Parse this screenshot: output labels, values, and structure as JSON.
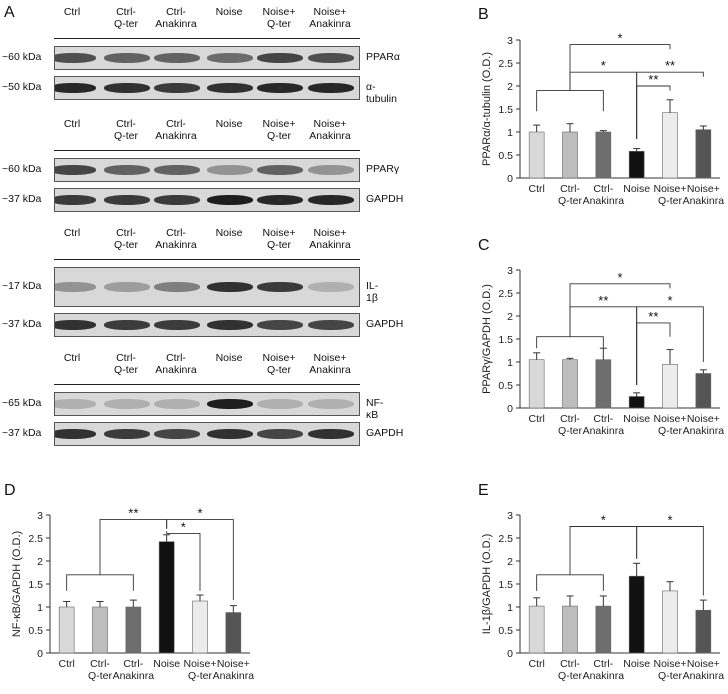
{
  "panels": {
    "A": "A",
    "B": "B",
    "C": "C",
    "D": "D",
    "E": "E"
  },
  "lanes": [
    "Ctrl",
    "Ctrl-\nQ-ter",
    "Ctrl-\nAnakinra",
    "Noise",
    "Noise+\nQ-ter",
    "Noise+\nAnakinra"
  ],
  "blots": [
    {
      "rows": [
        {
          "kda": "~60 kDa",
          "protein": "PPARα",
          "intensity": [
            0.7,
            0.6,
            0.6,
            0.55,
            0.75,
            0.7
          ]
        },
        {
          "kda": "~50 kDa",
          "protein": "α-tubulin",
          "intensity": [
            0.9,
            0.85,
            0.8,
            0.85,
            0.9,
            0.9
          ]
        }
      ]
    },
    {
      "rows": [
        {
          "kda": "~60 kDa",
          "protein": "PPARγ",
          "intensity": [
            0.75,
            0.6,
            0.6,
            0.35,
            0.6,
            0.35
          ]
        },
        {
          "kda": "~37 kDa",
          "protein": "GAPDH",
          "intensity": [
            0.8,
            0.8,
            0.8,
            0.95,
            0.9,
            0.9
          ]
        }
      ]
    },
    {
      "rows": [
        {
          "kda": "~17 kDa",
          "protein": "IL-1β",
          "intensity": [
            0.35,
            0.3,
            0.45,
            0.85,
            0.8,
            0.2
          ]
        },
        {
          "kda": "~37 kDa",
          "protein": "GAPDH",
          "intensity": [
            0.85,
            0.8,
            0.8,
            0.85,
            0.75,
            0.75
          ]
        }
      ]
    },
    {
      "rows": [
        {
          "kda": "~65 kDa",
          "protein": "NF-κB",
          "intensity": [
            0.2,
            0.2,
            0.2,
            0.95,
            0.2,
            0.2
          ]
        },
        {
          "kda": "~37 kDa",
          "protein": "GAPDH",
          "intensity": [
            0.85,
            0.8,
            0.75,
            0.85,
            0.75,
            0.85
          ]
        }
      ]
    }
  ],
  "chart_data": [
    {
      "panel": "B",
      "type": "bar",
      "categories": [
        "Ctrl",
        "Ctrl-\nQ-ter",
        "Ctrl-\nAnakinra",
        "Noise",
        "Noise+\nQ-ter",
        "Noise+\nAnakinra"
      ],
      "values": [
        1.0,
        1.0,
        1.0,
        0.58,
        1.42,
        1.05
      ],
      "errors": [
        0.15,
        0.18,
        0.03,
        0.06,
        0.28,
        0.08
      ],
      "ylabel": "PPARα/α-tubulin (O.D.)",
      "ylim": [
        0,
        3
      ],
      "yticks": [
        "0",
        "0.5",
        "1",
        "1.5",
        "2",
        "2.5",
        "3"
      ],
      "colors": [
        "#d8d8d8",
        "#bdbdbd",
        "#6e6e6e",
        "#111111",
        "#ececec",
        "#555555"
      ],
      "significance": [
        {
          "label": "*",
          "from": 3,
          "to": 4
        },
        {
          "label": "**",
          "from": 3,
          "to": 5
        },
        {
          "label": "*",
          "from": 1,
          "to": 3
        },
        {
          "label": "*",
          "from": 3,
          "to": 4
        }
      ]
    },
    {
      "panel": "C",
      "type": "bar",
      "categories": [
        "Ctrl",
        "Ctrl-\nQ-ter",
        "Ctrl-\nAnakinra",
        "Noise",
        "Noise+\nQ-ter",
        "Noise+\nAnakinra"
      ],
      "values": [
        1.05,
        1.05,
        1.05,
        0.25,
        0.95,
        0.75
      ],
      "errors": [
        0.15,
        0.03,
        0.25,
        0.08,
        0.32,
        0.08
      ],
      "ylabel": "PPARγ/GAPDH (O.D.)",
      "ylim": [
        0,
        3
      ],
      "yticks": [
        "0",
        "0.5",
        "1",
        "1.5",
        "2",
        "2.5",
        "3"
      ],
      "colors": [
        "#d8d8d8",
        "#bdbdbd",
        "#6e6e6e",
        "#111111",
        "#ececec",
        "#555555"
      ]
    },
    {
      "panel": "D",
      "type": "bar",
      "categories": [
        "Ctrl",
        "Ctrl-\nQ-ter",
        "Ctrl-\nAnakinra",
        "Noise",
        "Noise+\nQ-ter",
        "Noise+\nAnakinra"
      ],
      "values": [
        1.0,
        1.0,
        1.0,
        2.42,
        1.13,
        0.88
      ],
      "errors": [
        0.12,
        0.12,
        0.15,
        0.15,
        0.13,
        0.15
      ],
      "ylabel": "NF-κB/GAPDH (O.D.)",
      "ylim": [
        0,
        3
      ],
      "yticks": [
        "0",
        "0.5",
        "1",
        "1.5",
        "2",
        "2.5",
        "3"
      ],
      "colors": [
        "#d8d8d8",
        "#bdbdbd",
        "#6e6e6e",
        "#111111",
        "#ececec",
        "#555555"
      ]
    },
    {
      "panel": "E",
      "type": "bar",
      "categories": [
        "Ctrl",
        "Ctrl-\nQ-ter",
        "Ctrl-\nAnakinra",
        "Noise",
        "Noise+\nQ-ter",
        "Noise+\nAnakinra"
      ],
      "values": [
        1.02,
        1.02,
        1.02,
        1.67,
        1.35,
        0.93
      ],
      "errors": [
        0.18,
        0.22,
        0.22,
        0.28,
        0.2,
        0.22
      ],
      "ylabel": "IL-1β/GAPDH (O.D.)",
      "ylim": [
        0,
        3
      ],
      "yticks": [
        "0",
        "0.5",
        "1",
        "1.5",
        "2",
        "2.5",
        "3"
      ],
      "colors": [
        "#d8d8d8",
        "#bdbdbd",
        "#6e6e6e",
        "#111111",
        "#ececec",
        "#555555"
      ]
    }
  ]
}
